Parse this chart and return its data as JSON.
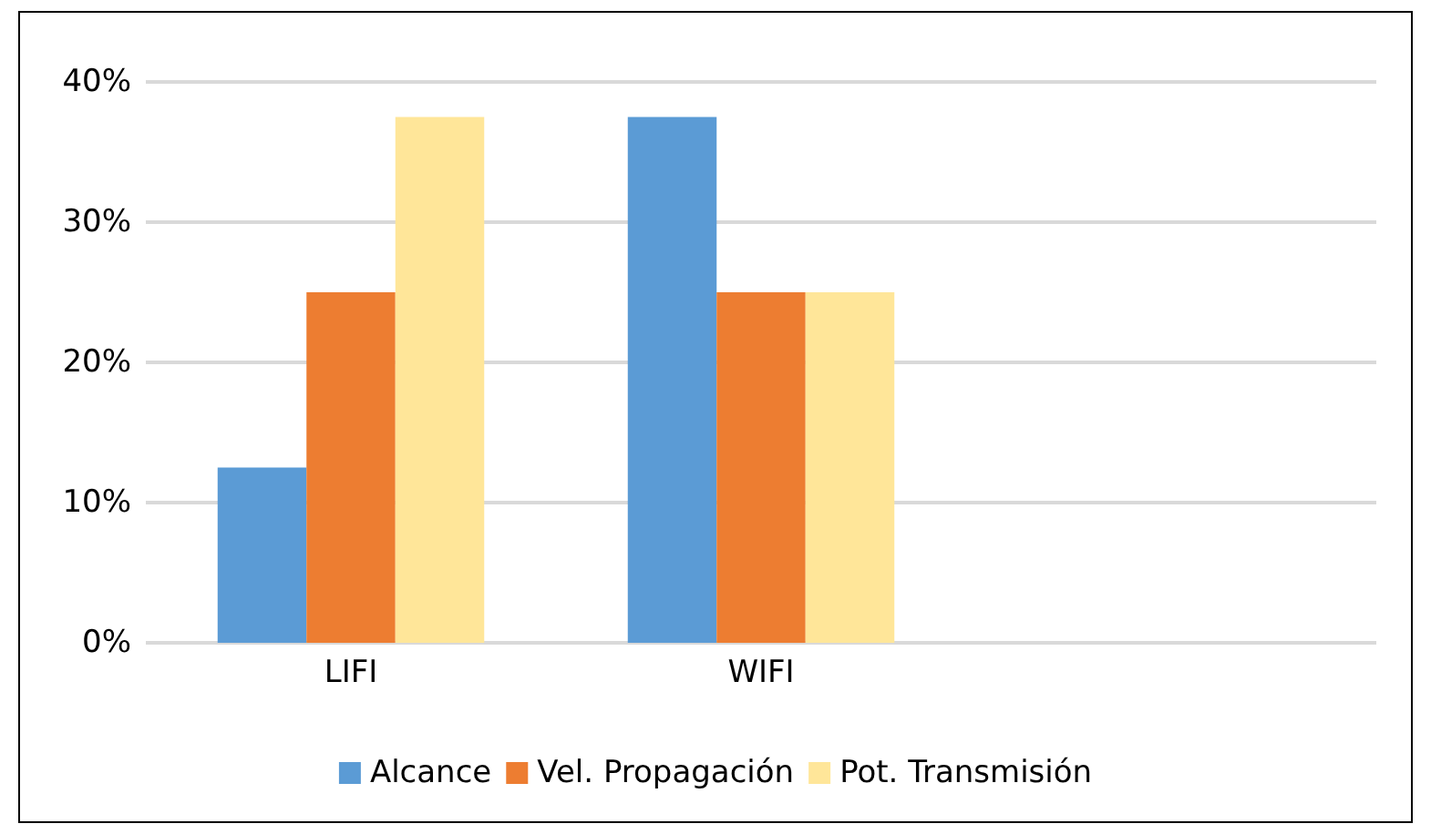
{
  "chart_data": {
    "type": "bar",
    "categories": [
      "LIFI",
      "WIFI",
      null
    ],
    "series": [
      {
        "name": "Alcance",
        "color": "#5b9bd5",
        "values": [
          12.5,
          37.5,
          null
        ]
      },
      {
        "name": "Vel. Propagación",
        "color": "#ed7d31",
        "values": [
          25,
          25,
          null
        ]
      },
      {
        "name": "Pot. Transmisión",
        "color": "#ffe699",
        "values": [
          37.5,
          25,
          null
        ]
      }
    ],
    "ylim": [
      0,
      40
    ],
    "yticks": [
      {
        "value": 0,
        "label": "0%"
      },
      {
        "value": 10,
        "label": "10%"
      },
      {
        "value": 20,
        "label": "20%"
      },
      {
        "value": 30,
        "label": "30%"
      },
      {
        "value": 40,
        "label": "40%"
      }
    ],
    "grid": "y",
    "legend": "bottom"
  }
}
